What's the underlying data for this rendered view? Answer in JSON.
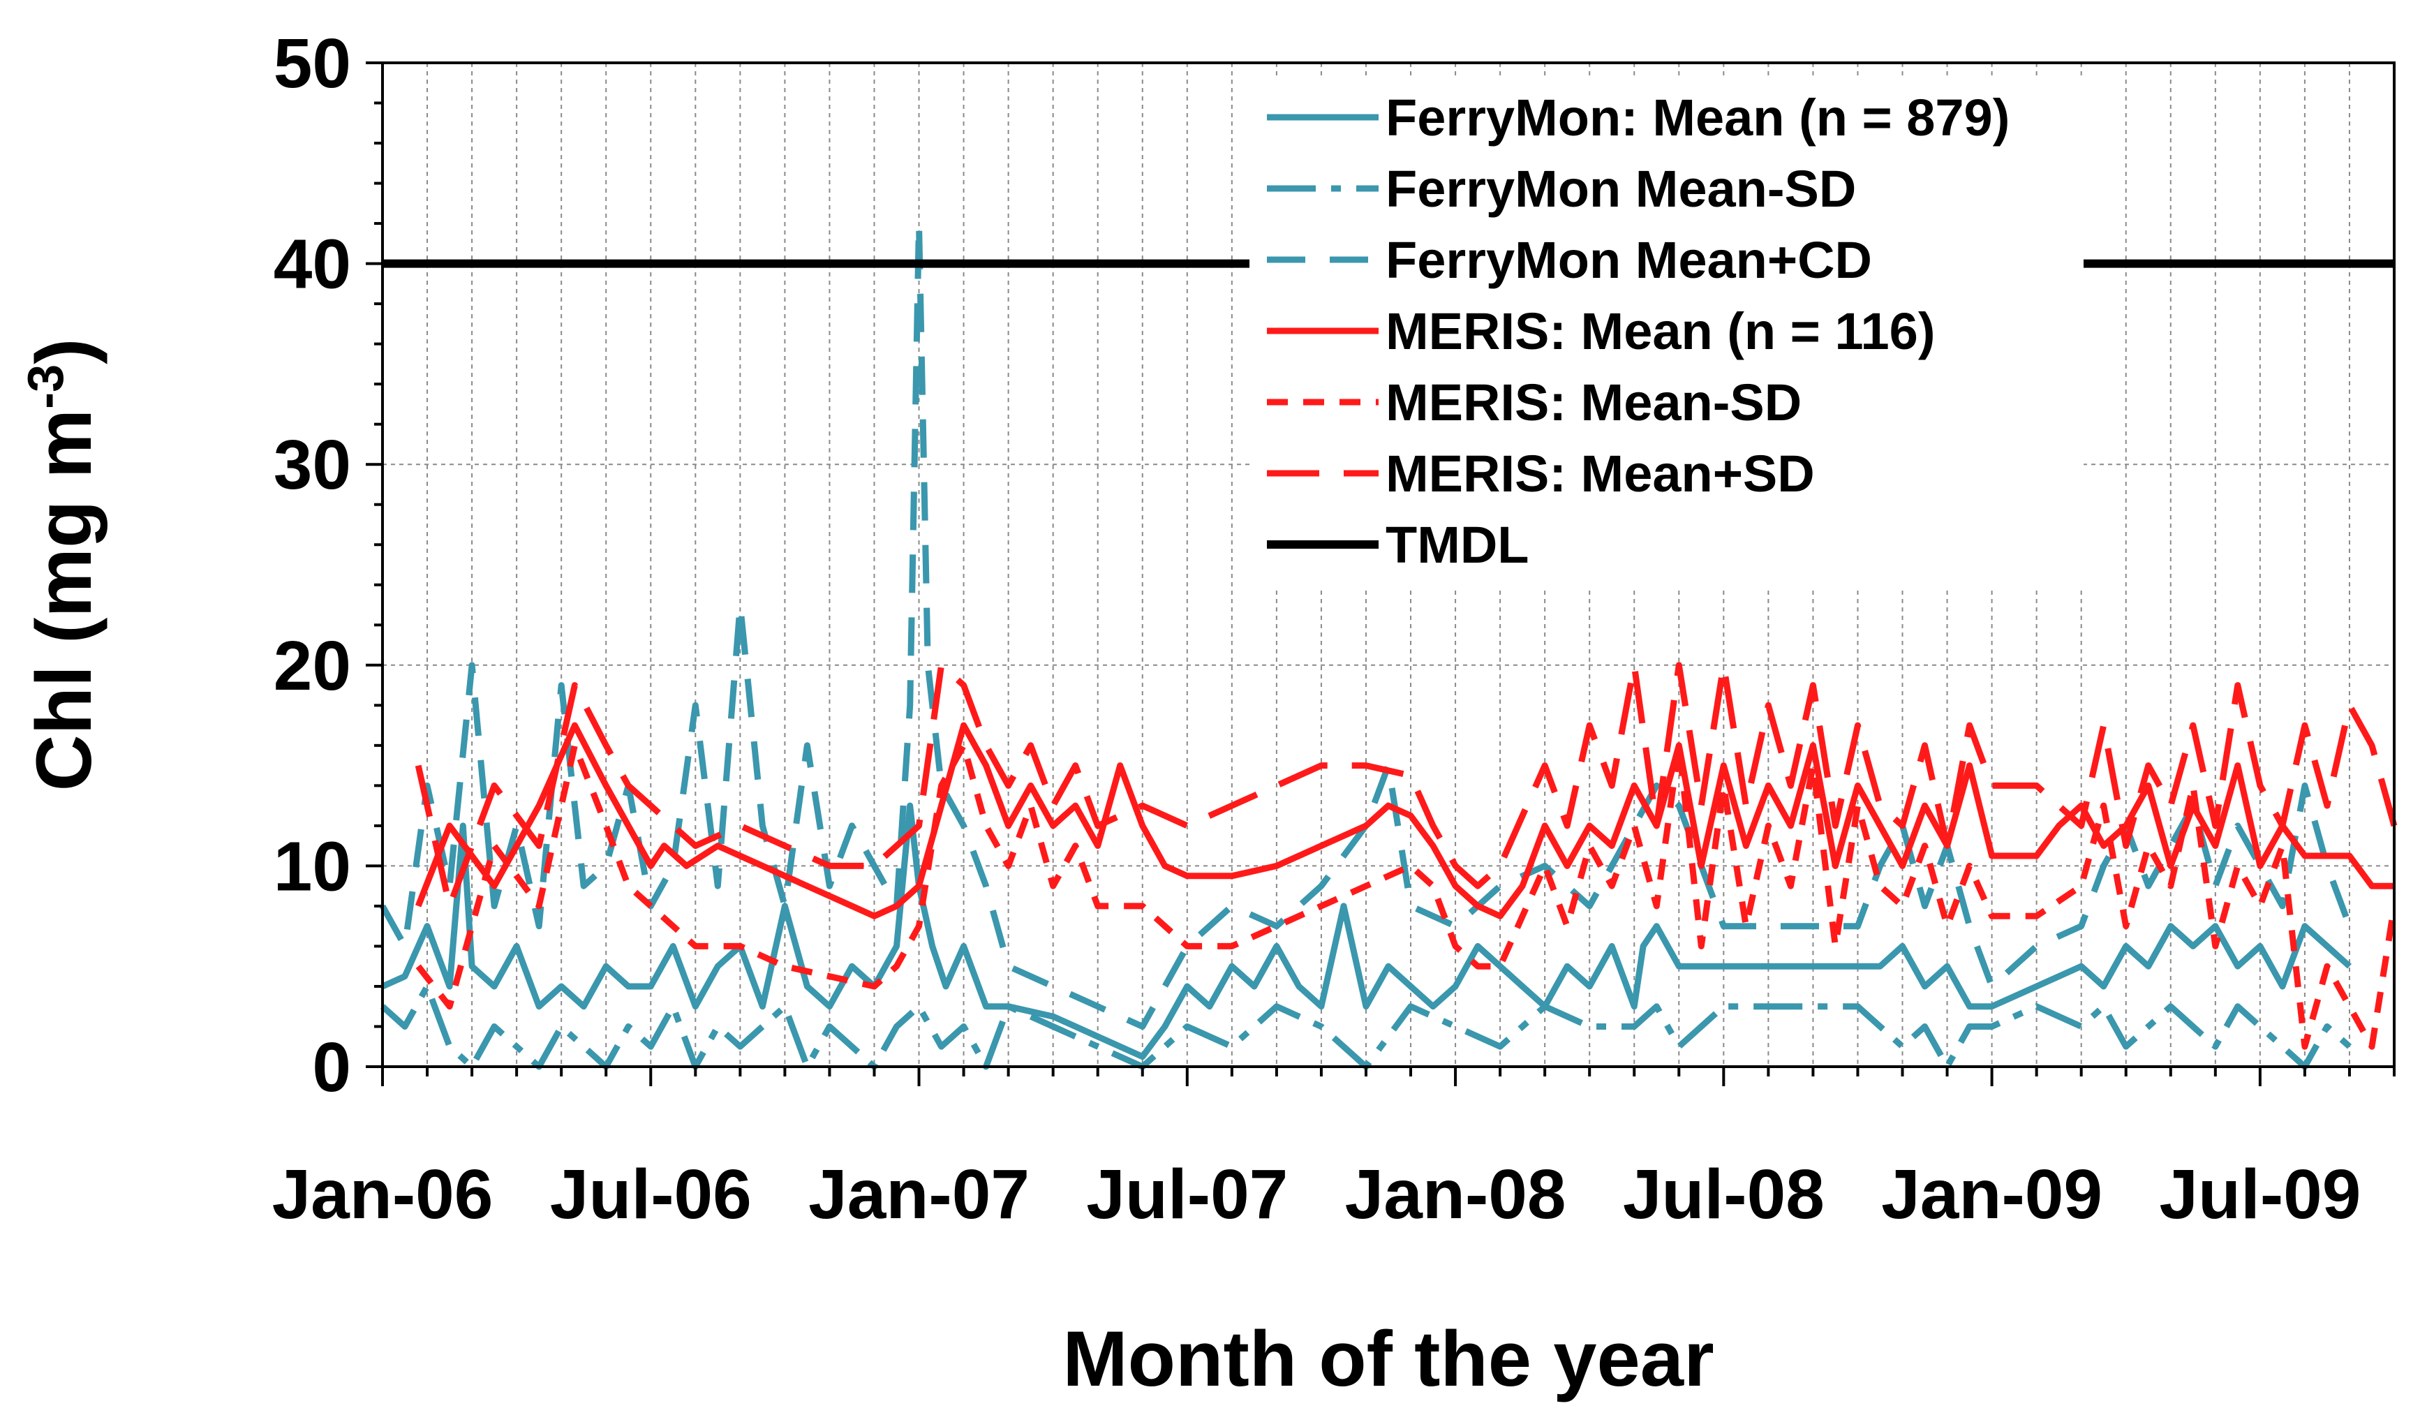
{
  "chart_data": {
    "type": "line",
    "title": "",
    "xlabel": "Month of the year",
    "ylabel": "Chl (mg m",
    "ylabel_superscript": "-3",
    "ylabel_close": ")",
    "xlim": [
      0,
      45
    ],
    "ylim": [
      0,
      50
    ],
    "yticks": [
      0,
      10,
      20,
      30,
      40,
      50
    ],
    "xticks": [
      {
        "x": 0,
        "label": "Jan-06"
      },
      {
        "x": 6,
        "label": "Jul-06"
      },
      {
        "x": 12,
        "label": "Jan-07"
      },
      {
        "x": 18,
        "label": "Jul-07"
      },
      {
        "x": 24,
        "label": "Jan-08"
      },
      {
        "x": 30,
        "label": "Jul-08"
      },
      {
        "x": 36,
        "label": "Jan-09"
      },
      {
        "x": 42,
        "label": "Jul-09"
      }
    ],
    "grid": true,
    "legend_position": "top-right",
    "series": [
      {
        "name": "FerryMon: Mean (n = 879)",
        "color": "#3a97ad",
        "dash": "solid",
        "x": [
          0,
          0.5,
          1,
          1.5,
          1.8,
          2,
          2.5,
          3,
          3.5,
          4,
          4.5,
          5,
          5.5,
          6,
          6.5,
          7,
          7.5,
          8,
          8.5,
          9,
          9.5,
          10,
          10.5,
          11,
          11.5,
          11.8,
          12,
          12.3,
          12.6,
          13,
          13.5,
          14,
          15,
          16,
          17,
          17.5,
          18,
          18.5,
          19,
          19.5,
          20,
          20.5,
          21,
          21.5,
          22,
          22.5,
          23,
          23.5,
          24,
          24.5,
          25,
          25.5,
          26,
          26.5,
          27,
          27.5,
          28,
          28.2,
          28.5,
          29,
          29.3,
          29.5,
          30,
          31,
          32,
          33,
          33.5,
          34,
          34.5,
          35,
          35.5,
          36,
          37,
          38,
          38.5,
          39,
          39.5,
          40,
          40.5,
          41,
          41.5,
          42,
          42.5,
          43,
          43.5,
          44
        ],
        "y": [
          4,
          4.5,
          7,
          4,
          12,
          5,
          4,
          6,
          3,
          4,
          3,
          5,
          4,
          4,
          6,
          3,
          5,
          6,
          3,
          8,
          4,
          3,
          5,
          4,
          6,
          13,
          9,
          6,
          4,
          6,
          3,
          3,
          2.5,
          1.5,
          0.5,
          2,
          4,
          3,
          5,
          4,
          6,
          4,
          3,
          8,
          3,
          5,
          4,
          3,
          4,
          6,
          5,
          4,
          3,
          5,
          4,
          6,
          3,
          6,
          7,
          5,
          5,
          5,
          5,
          5,
          5,
          5,
          5,
          6,
          4,
          5,
          3,
          3,
          4,
          5,
          4,
          6,
          5,
          7,
          6,
          7,
          5,
          6,
          4,
          7,
          6,
          5
        ]
      },
      {
        "name": "FerryMon Mean-SD",
        "color": "#3a97ad",
        "dash": "dashdot",
        "x": [
          0,
          0.5,
          1,
          1.5,
          2,
          2.5,
          3,
          3.5,
          4,
          4.5,
          5,
          5.5,
          6,
          6.5,
          7,
          7.5,
          8,
          8.5,
          9,
          9.5,
          10,
          10.5,
          11,
          11.5,
          12,
          12.5,
          13,
          13.5,
          14,
          15,
          16,
          17,
          18,
          19,
          20,
          21,
          22,
          23,
          24,
          25,
          26,
          27,
          28,
          28.5,
          29,
          30,
          31,
          32,
          33,
          33.5,
          34,
          34.5,
          35,
          35.5,
          36,
          37,
          38,
          38.5,
          39,
          39.5,
          40,
          40.5,
          41,
          41.5,
          42,
          42.5,
          43,
          43.5,
          44
        ],
        "y": [
          3,
          2,
          4,
          1,
          0,
          2,
          1,
          0,
          2,
          1,
          0,
          2,
          1,
          3,
          0,
          2,
          1,
          2,
          3,
          0,
          2,
          1,
          0,
          2,
          3,
          1,
          2,
          0,
          3,
          2,
          1,
          0,
          2,
          1,
          3,
          2,
          0,
          3,
          2,
          1,
          3,
          2,
          2,
          3,
          1,
          3,
          3,
          3,
          3,
          2,
          1,
          2,
          0,
          2,
          2,
          3,
          2,
          3,
          1,
          2,
          3,
          2,
          1,
          3,
          2,
          1,
          0,
          2,
          1
        ]
      },
      {
        "name": "FerryMon Mean+CD",
        "color": "#3a97ad",
        "dash": "dash",
        "x": [
          0,
          0.5,
          1,
          1.5,
          2,
          2.5,
          3,
          3.5,
          4,
          4.5,
          5,
          5.5,
          6,
          6.5,
          7,
          7.5,
          8,
          8.5,
          9,
          9.5,
          10,
          10.5,
          11,
          11.5,
          11.8,
          12,
          12.2,
          12.5,
          13,
          13.5,
          14,
          15,
          16,
          17,
          18,
          19,
          20,
          21,
          22,
          22.5,
          23,
          24,
          25,
          26,
          27,
          28,
          28.5,
          29,
          30,
          31,
          32,
          33,
          33.5,
          34,
          34.5,
          35,
          35.5,
          36,
          37,
          38,
          38.5,
          39,
          39.5,
          40,
          40.5,
          41,
          41.5,
          42,
          42.5,
          43,
          43.5,
          44
        ],
        "y": [
          8,
          6,
          14,
          9,
          20,
          8,
          12,
          7,
          19,
          9,
          10,
          14,
          8,
          10,
          18,
          9,
          23,
          12,
          8,
          16,
          9,
          12,
          10,
          8,
          18,
          42,
          20,
          14,
          12,
          9,
          5,
          4,
          3,
          2,
          6,
          8,
          7,
          9,
          12,
          15,
          8,
          7,
          9,
          10,
          8,
          12,
          14,
          13,
          7,
          7,
          7,
          7,
          10,
          12,
          8,
          11,
          7,
          4,
          6,
          7,
          10,
          12,
          9,
          11,
          13,
          9,
          12,
          10,
          8,
          14,
          10,
          7
        ]
      },
      {
        "name": "MERIS: Mean (n = 116)",
        "color": "#ff1a1a",
        "dash": "solid",
        "x": [
          0.8,
          1.5,
          2.5,
          3.5,
          4.3,
          5,
          5.5,
          6,
          6.3,
          6.8,
          7.5,
          8.5,
          9.5,
          10.5,
          11,
          11.5,
          12,
          12.5,
          13,
          13.5,
          14,
          14.5,
          15,
          15.5,
          16,
          16.5,
          17,
          17.5,
          18,
          19,
          20,
          21,
          22,
          22.5,
          23,
          23.5,
          24,
          24.5,
          25,
          25.5,
          26,
          26.5,
          27,
          27.5,
          28,
          28.5,
          29,
          29.5,
          30,
          30.5,
          31,
          31.5,
          32,
          32.5,
          33,
          33.5,
          34,
          34.5,
          35,
          35.5,
          36,
          36.5,
          37,
          37.5,
          38,
          38.5,
          39,
          39.5,
          40,
          40.5,
          41,
          41.5,
          42,
          42.5,
          43,
          43.5,
          44,
          44.5,
          45
        ],
        "y": [
          8,
          12,
          9,
          13,
          17,
          14,
          12,
          10,
          11,
          10,
          11,
          10,
          9,
          8,
          7.5,
          8,
          9,
          13,
          17,
          15,
          12,
          14,
          12,
          13,
          11,
          15,
          12,
          10,
          9.5,
          9.5,
          10,
          11,
          12,
          13,
          12.5,
          11,
          9,
          8,
          7.5,
          9,
          12,
          10,
          12,
          11,
          14,
          12,
          16,
          10,
          15,
          11,
          14,
          12,
          16,
          10,
          14,
          12,
          10,
          13,
          11,
          15,
          10.5,
          10.5,
          10.5,
          12,
          13,
          11,
          12,
          14,
          10,
          13,
          11,
          15,
          10,
          12,
          10.5,
          10.5,
          10.5,
          9,
          9
        ]
      },
      {
        "name": "MERIS: Mean-SD",
        "color": "#ff1a1a",
        "dash": "shortdash",
        "x": [
          0.8,
          1.5,
          2.5,
          3.5,
          4.3,
          5,
          5.5,
          6,
          6.5,
          7,
          8,
          9,
          10,
          11,
          11.5,
          12,
          12.5,
          13,
          13.5,
          14,
          14.5,
          15,
          15.5,
          16,
          17,
          18,
          19,
          20,
          21,
          22,
          23,
          23.5,
          24,
          24.5,
          25,
          26,
          26.5,
          27,
          27.5,
          28,
          28.5,
          29,
          29.5,
          30,
          30.5,
          31,
          31.5,
          32,
          32.5,
          33,
          33.5,
          34,
          34.5,
          35,
          35.5,
          36,
          37,
          38,
          38.5,
          39,
          39.5,
          40,
          40.5,
          41,
          41.5,
          42,
          42.5,
          43,
          43.5,
          44,
          44.5,
          45
        ],
        "y": [
          5,
          3,
          11,
          8,
          16,
          12,
          9,
          8,
          7,
          6,
          6,
          5,
          4.5,
          4,
          5,
          7,
          14,
          16,
          12,
          10,
          13,
          9,
          11,
          8,
          8,
          6,
          6,
          7,
          8,
          9,
          10,
          9,
          6,
          5,
          5,
          10,
          7,
          11,
          9,
          12,
          8,
          16,
          6,
          14,
          7,
          12,
          9,
          15,
          6,
          13,
          9,
          8,
          11,
          7,
          10,
          7.5,
          7.5,
          9,
          13,
          7,
          11,
          9,
          14,
          6,
          10,
          8,
          11,
          1,
          5,
          3,
          1,
          8
        ]
      },
      {
        "name": "MERIS: Mean+SD",
        "color": "#ff1a1a",
        "dash": "longdash",
        "x": [
          0.8,
          1.5,
          2.5,
          3.5,
          4.3,
          5,
          5.5,
          6,
          6.5,
          7,
          8,
          9,
          10,
          11,
          11.5,
          12,
          12.5,
          13,
          13.5,
          14,
          14.5,
          15,
          15.5,
          16,
          17,
          18,
          19,
          20,
          21,
          22,
          23,
          23.5,
          24,
          24.5,
          25,
          26,
          26.5,
          27,
          27.5,
          28,
          28.5,
          29,
          29.5,
          30,
          30.5,
          31,
          31.5,
          32,
          32.5,
          33,
          33.5,
          34,
          34.5,
          35,
          35.5,
          36,
          37,
          38,
          38.5,
          39,
          39.5,
          40,
          40.5,
          41,
          41.5,
          42,
          42.5,
          43,
          43.5,
          44,
          44.5,
          45
        ],
        "y": [
          15,
          8,
          14,
          11,
          19,
          16,
          14,
          13,
          12,
          11,
          12,
          11,
          10,
          10,
          11,
          12,
          20,
          19,
          16,
          14,
          16,
          13,
          15,
          12,
          13,
          12,
          13,
          14,
          15,
          15,
          14.5,
          12,
          10,
          9,
          10,
          15,
          12,
          17,
          14,
          20,
          12,
          20,
          13,
          20,
          13,
          18,
          14,
          19,
          12,
          17,
          13,
          12,
          16,
          11,
          17,
          14,
          14,
          12,
          17,
          11,
          15,
          13,
          17,
          12,
          19,
          14,
          12,
          17,
          13,
          18,
          16,
          12
        ]
      },
      {
        "name": "TMDL",
        "color": "#000000",
        "dash": "solid",
        "x": [
          0,
          45
        ],
        "y": [
          40,
          40
        ]
      }
    ]
  }
}
